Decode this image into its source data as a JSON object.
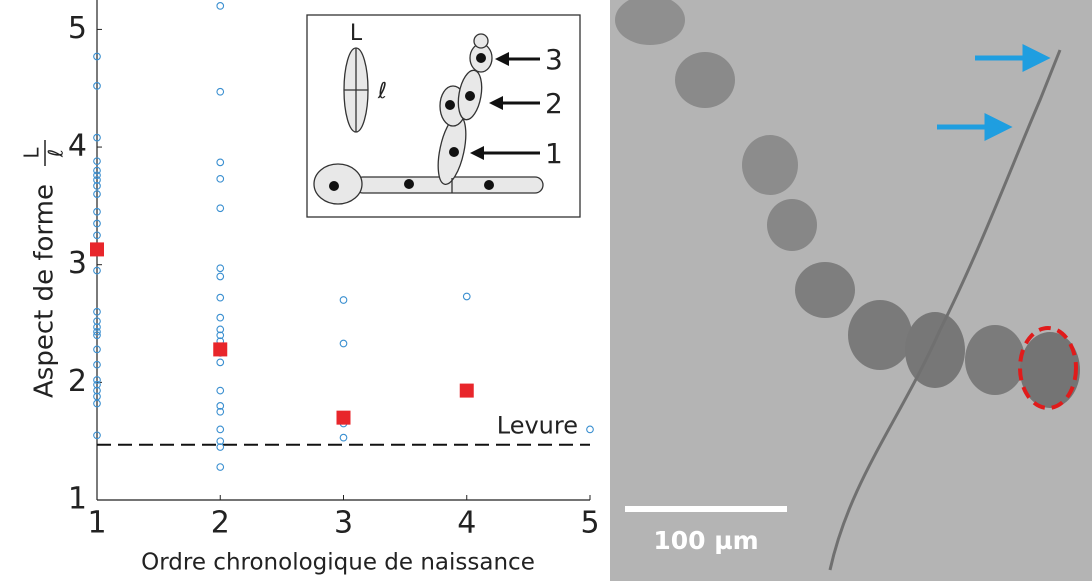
{
  "chart_data": {
    "type": "scatter",
    "xlabel": "Ordre chronologique de naissance",
    "ylabel": "Aspect de forme",
    "ylabel_fraction": {
      "numerator": "L",
      "denominator": "ℓ"
    },
    "xlim": [
      1,
      5
    ],
    "ylim": [
      1,
      5.25
    ],
    "xticks": [
      1,
      2,
      3,
      4,
      5
    ],
    "yticks": [
      1,
      2,
      3,
      4,
      5
    ],
    "series": [
      {
        "color": "#3a8fd0",
        "marker": "circle",
        "x": [
          1,
          1,
          1,
          1,
          1,
          1,
          1,
          1,
          1,
          1,
          1,
          1,
          1,
          1,
          1,
          1,
          1,
          1,
          1,
          1,
          1,
          1,
          1,
          1,
          1,
          1,
          2,
          2,
          2,
          2,
          2,
          2,
          2,
          2,
          2,
          2,
          2,
          2,
          2,
          2,
          2,
          2,
          2,
          2,
          2,
          2,
          2,
          2,
          3,
          3,
          3,
          3,
          4,
          4,
          5
        ],
        "y": [
          4.77,
          4.52,
          4.08,
          3.88,
          3.8,
          3.76,
          3.72,
          3.67,
          3.6,
          3.45,
          3.35,
          3.25,
          2.95,
          2.6,
          2.52,
          2.47,
          2.43,
          2.4,
          2.28,
          2.15,
          2.02,
          1.98,
          1.93,
          1.88,
          1.82,
          1.55,
          5.2,
          4.47,
          3.87,
          3.73,
          3.48,
          2.97,
          2.9,
          2.72,
          2.55,
          2.45,
          2.4,
          2.35,
          2.3,
          2.25,
          2.17,
          1.93,
          1.8,
          1.75,
          1.6,
          1.5,
          1.45,
          1.28,
          2.7,
          2.33,
          1.65,
          1.53,
          2.73,
          1.93,
          1.6
        ]
      },
      {
        "color": "#e8262b",
        "marker": "square",
        "x": [
          1,
          2,
          3,
          4
        ],
        "y": [
          3.13,
          2.28,
          1.7,
          1.93
        ]
      }
    ],
    "reference_line": {
      "value": 1.47,
      "label": "Levure"
    },
    "inset_labels": {
      "length": "L",
      "width": "ℓ",
      "bud_1": "1",
      "bud_2": "2",
      "bud_3": "3"
    },
    "image": {
      "scale_bar": "100 µm"
    }
  }
}
